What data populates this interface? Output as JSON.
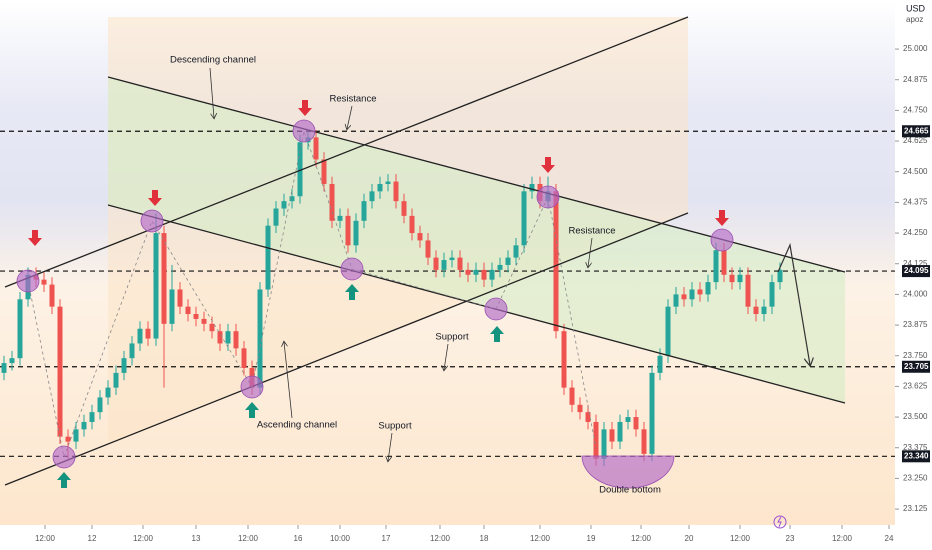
{
  "chart_data": {
    "type": "candlestick",
    "currency": "USD",
    "note": "apoz",
    "up_color": "#26a69a",
    "down_color": "#ef5350",
    "open": [
      23.68,
      23.72,
      23.74,
      23.98,
      24.08,
      24.06,
      24.04,
      23.95,
      23.42,
      23.4,
      23.45,
      23.48,
      23.52,
      23.58,
      23.62,
      23.68,
      23.74,
      23.8,
      23.86,
      23.82,
      24.25,
      23.88,
      24.02,
      23.95,
      23.92,
      23.9,
      23.88,
      23.85,
      23.8,
      23.85,
      23.78,
      23.7,
      23.62,
      24.02,
      24.28,
      24.35,
      24.38,
      24.4,
      24.62,
      24.64,
      24.55,
      24.45,
      24.3,
      24.32,
      24.2,
      24.3,
      24.38,
      24.42,
      24.45,
      24.46,
      24.38,
      24.32,
      24.25,
      24.22,
      24.15,
      24.1,
      24.14,
      24.15,
      24.1,
      24.08,
      24.1,
      24.06,
      24.1,
      24.12,
      24.15,
      24.2,
      24.42,
      24.45,
      24.38,
      24.42,
      23.85,
      23.62,
      23.55,
      23.52,
      23.48,
      23.33,
      23.45,
      23.4,
      23.48,
      23.5,
      23.45,
      23.35,
      23.68,
      23.75,
      23.95,
      24.0,
      23.98,
      24.02,
      24.0,
      24.05,
      24.18,
      24.08,
      24.05,
      24.08,
      23.95,
      23.92,
      23.95,
      24.05
    ],
    "high": [
      23.75,
      23.77,
      24.01,
      24.11,
      24.11,
      24.09,
      24.07,
      23.98,
      23.45,
      23.48,
      23.51,
      23.55,
      23.61,
      23.65,
      23.71,
      23.77,
      23.83,
      23.89,
      23.89,
      24.33,
      24.28,
      24.12,
      24.05,
      23.98,
      23.95,
      23.93,
      23.91,
      23.88,
      23.88,
      23.88,
      23.81,
      23.73,
      24.05,
      24.31,
      24.38,
      24.41,
      24.43,
      24.65,
      24.67,
      24.67,
      24.58,
      24.48,
      24.35,
      24.35,
      24.33,
      24.41,
      24.45,
      24.48,
      24.49,
      24.49,
      24.41,
      24.35,
      24.28,
      24.25,
      24.18,
      24.17,
      24.18,
      24.18,
      24.13,
      24.13,
      24.13,
      24.13,
      24.15,
      24.18,
      24.23,
      24.45,
      24.48,
      24.48,
      24.48,
      24.45,
      23.88,
      23.65,
      23.58,
      23.55,
      23.51,
      23.48,
      23.48,
      23.51,
      23.53,
      23.53,
      23.48,
      23.71,
      23.78,
      23.98,
      24.03,
      24.03,
      24.05,
      24.05,
      24.08,
      24.21,
      24.21,
      24.11,
      24.11,
      24.11,
      23.98,
      23.98,
      24.08,
      24.13
    ],
    "low": [
      23.65,
      23.69,
      23.71,
      23.95,
      24.03,
      24.01,
      23.92,
      23.39,
      23.33,
      23.37,
      23.42,
      23.45,
      23.49,
      23.55,
      23.59,
      23.65,
      23.71,
      23.77,
      23.79,
      23.79,
      23.62,
      23.85,
      23.92,
      23.89,
      23.87,
      23.85,
      23.82,
      23.77,
      23.77,
      23.75,
      23.67,
      23.59,
      23.59,
      23.99,
      24.25,
      24.32,
      24.35,
      24.37,
      24.59,
      24.52,
      24.42,
      24.27,
      24.27,
      24.17,
      24.17,
      24.27,
      24.35,
      24.39,
      24.42,
      24.35,
      24.29,
      24.22,
      24.19,
      24.12,
      24.07,
      24.07,
      24.11,
      24.07,
      24.05,
      24.05,
      24.03,
      24.03,
      24.07,
      24.09,
      24.12,
      24.17,
      24.39,
      24.35,
      24.35,
      23.82,
      23.59,
      23.52,
      23.49,
      23.45,
      23.3,
      23.3,
      23.37,
      23.37,
      23.45,
      23.42,
      23.32,
      23.32,
      23.65,
      23.72,
      23.92,
      23.95,
      23.95,
      23.97,
      23.97,
      24.02,
      24.05,
      24.02,
      24.02,
      23.92,
      23.89,
      23.89,
      23.92,
      24.02
    ],
    "close": [
      23.72,
      23.74,
      23.98,
      24.08,
      24.06,
      24.04,
      23.95,
      23.42,
      23.4,
      23.45,
      23.48,
      23.52,
      23.58,
      23.62,
      23.68,
      23.74,
      23.8,
      23.86,
      23.82,
      24.25,
      23.88,
      24.02,
      23.95,
      23.92,
      23.9,
      23.88,
      23.85,
      23.8,
      23.85,
      23.78,
      23.7,
      23.62,
      24.02,
      24.28,
      24.35,
      24.38,
      24.4,
      24.62,
      24.64,
      24.55,
      24.45,
      24.3,
      24.32,
      24.2,
      24.3,
      24.38,
      24.42,
      24.45,
      24.46,
      24.38,
      24.32,
      24.25,
      24.22,
      24.15,
      24.1,
      24.14,
      24.15,
      24.1,
      24.08,
      24.1,
      24.06,
      24.1,
      24.12,
      24.15,
      24.2,
      24.42,
      24.45,
      24.38,
      24.42,
      23.85,
      23.62,
      23.55,
      23.52,
      23.48,
      23.33,
      23.45,
      23.4,
      23.48,
      23.5,
      23.45,
      23.35,
      23.68,
      23.75,
      23.95,
      24.0,
      23.98,
      24.02,
      24.0,
      24.05,
      24.18,
      24.08,
      24.05,
      24.08,
      23.95,
      23.92,
      23.95,
      24.05,
      24.1
    ],
    "xlim": [
      -0.5,
      111.375
    ],
    "xticks": [
      {
        "value": 5.125,
        "label": "12:00"
      },
      {
        "value": 11,
        "label": "12"
      },
      {
        "value": 17.375,
        "label": "12:00"
      },
      {
        "value": 24,
        "label": "13"
      },
      {
        "value": 30.5,
        "label": "12:00"
      },
      {
        "value": 36.75,
        "label": "16"
      },
      {
        "value": 42,
        "label": "10:00"
      },
      {
        "value": 47.75,
        "label": "17"
      },
      {
        "value": 54.5,
        "label": "12:00"
      },
      {
        "value": 60,
        "label": "18"
      },
      {
        "value": 67,
        "label": "12:00"
      },
      {
        "value": 73.375,
        "label": "19"
      },
      {
        "value": 79.625,
        "label": "12:00"
      },
      {
        "value": 85.625,
        "label": "20"
      },
      {
        "value": 92,
        "label": "12:00"
      },
      {
        "value": 98.25,
        "label": "23"
      },
      {
        "value": 104.75,
        "label": "12:00"
      },
      {
        "value": 110.625,
        "label": "24"
      }
    ],
    "ylim": [
      23.06,
      25.2
    ],
    "yticks": [
      23.125,
      {
        "value": 23.25,
        "label": "23.250"
      },
      23.375,
      {
        "value": 23.5,
        "label": "23.500"
      },
      23.625,
      {
        "value": 23.75,
        "label": "23.750"
      },
      23.875,
      {
        "value": 24,
        "label": "24.000"
      },
      24.125,
      {
        "value": 24.25,
        "label": "24.250"
      },
      24.375,
      {
        "value": 24.5,
        "label": "24.500"
      },
      24.625,
      {
        "value": 24.75,
        "label": "24.750"
      },
      24.875,
      {
        "value": 25,
        "label": "25.000"
      }
    ],
    "levels": [
      24.665,
      24.095,
      23.705,
      {
        "value": 23.34,
        "label": "23.340"
      }
    ],
    "annotations": [
      "Descending channel",
      "Resistance",
      "Resistance",
      "Support",
      "Ascending channel",
      "Support",
      "Double bottom"
    ]
  }
}
